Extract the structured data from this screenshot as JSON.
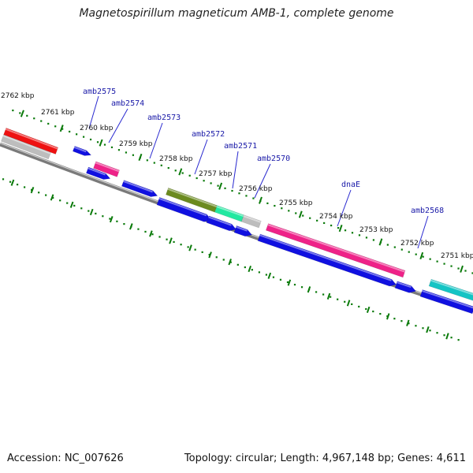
{
  "title": "Magnetospirillum magneticum AMB-1, complete genome",
  "footer": {
    "accession": "Accession: NC_007626",
    "topology": "Topology: circular; Length: 4,967,148 bp; Genes: 4,611"
  },
  "kbp_labels": [
    {
      "text": "2762 kbp"
    },
    {
      "text": "2761 kbp"
    },
    {
      "text": "2760 kbp"
    },
    {
      "text": "2759 kbp"
    },
    {
      "text": "2758 kbp"
    },
    {
      "text": "2757 kbp"
    },
    {
      "text": "2756 kbp"
    },
    {
      "text": "2755 kbp"
    },
    {
      "text": "2754 kbp"
    },
    {
      "text": "2753 kbp"
    },
    {
      "text": "2752 kbp"
    },
    {
      "text": "2751 kbp"
    }
  ],
  "gene_labels": [
    {
      "text": "amb2575"
    },
    {
      "text": "amb2574"
    },
    {
      "text": "amb2573"
    },
    {
      "text": "amb2572"
    },
    {
      "text": "amb2571"
    },
    {
      "text": "amb2570"
    },
    {
      "text": "dnaE"
    },
    {
      "text": "amb2568"
    }
  ],
  "colors": {
    "backbone": "#7a7a7a",
    "cds": "#1010e0",
    "ticks": "#0a7a0a",
    "red": "#ee1111",
    "magenta": "#ee2288",
    "olive": "#6b8a1f",
    "mint": "#22e8a0",
    "grey": "#bdbdbd",
    "teal": "#14c4c4",
    "label": "#1a1aa8"
  }
}
